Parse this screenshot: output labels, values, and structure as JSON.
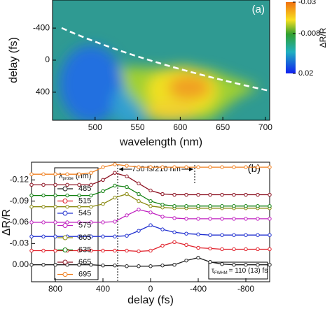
{
  "chart_data": [
    {
      "type": "heatmap",
      "panel_label": "(a)",
      "xlabel": "wavelength (nm)",
      "ylabel": "delay (fs)",
      "xlim": [
        450,
        705
      ],
      "xticks": [
        500,
        550,
        600,
        650,
        700
      ],
      "ylim": [
        -750,
        750
      ],
      "yticks": [
        -400,
        0,
        400
      ],
      "colorbar": {
        "label": "ΔR/R",
        "lim": [
          -0.03,
          0.02
        ],
        "ticks": [
          -0.03,
          -0.008,
          0.02
        ]
      }
    },
    {
      "type": "line",
      "panel_label": "(b)",
      "xlabel": "delay (fs)",
      "ylabel": "ΔR/R",
      "annotation": "730 fs/210 nm",
      "tau": {
        "symbol": "τ",
        "sub": "FWHM",
        "text": "= 110 (13) fs"
      },
      "legend_title": {
        "symbol": "λ",
        "sub": "probe",
        "unit": "(nm)"
      },
      "xlim": [
        1000,
        -1000
      ],
      "xticks": [
        800,
        400,
        0,
        -400,
        -800
      ],
      "ylim": [
        -0.145,
        0.024
      ],
      "yticks": [
        {
          "value": 0,
          "label": "0.00"
        },
        -0.03,
        -0.06,
        -0.09,
        -0.12
      ],
      "x": [
        1000,
        900,
        800,
        700,
        600,
        500,
        400,
        300,
        200,
        100,
        0,
        -100,
        -200,
        -300,
        -400,
        -500,
        -600,
        -700,
        -800,
        -900,
        -1000
      ],
      "series": [
        {
          "name": "485",
          "color": "#222222",
          "values": [
            0,
            0,
            0,
            0,
            0,
            0,
            0.001,
            0.001,
            0.002,
            0.002,
            0.002,
            0.001,
            0,
            -0.006,
            -0.01,
            -0.004,
            -0.001,
            0,
            0,
            0,
            0
          ]
        },
        {
          "name": "515",
          "color": "#e0202a",
          "values": [
            -0.02,
            -0.02,
            -0.02,
            -0.02,
            -0.02,
            -0.02,
            -0.02,
            -0.02,
            -0.02,
            -0.019,
            -0.02,
            -0.027,
            -0.032,
            -0.028,
            -0.024,
            -0.023,
            -0.022,
            -0.022,
            -0.022,
            -0.022,
            -0.022
          ]
        },
        {
          "name": "545",
          "color": "#2030d0",
          "values": [
            -0.04,
            -0.04,
            -0.04,
            -0.04,
            -0.04,
            -0.04,
            -0.04,
            -0.04,
            -0.041,
            -0.048,
            -0.056,
            -0.05,
            -0.046,
            -0.044,
            -0.043,
            -0.042,
            -0.042,
            -0.042,
            -0.042,
            -0.042,
            -0.042
          ]
        },
        {
          "name": "575",
          "color": "#c020c0",
          "values": [
            -0.06,
            -0.06,
            -0.06,
            -0.06,
            -0.06,
            -0.06,
            -0.06,
            -0.061,
            -0.07,
            -0.078,
            -0.074,
            -0.068,
            -0.066,
            -0.065,
            -0.065,
            -0.065,
            -0.065,
            -0.065,
            -0.065,
            -0.065,
            -0.065
          ]
        },
        {
          "name": "605",
          "color": "#8a8a10",
          "values": [
            -0.082,
            -0.082,
            -0.082,
            -0.082,
            -0.082,
            -0.082,
            -0.086,
            -0.095,
            -0.1,
            -0.09,
            -0.083,
            -0.081,
            -0.08,
            -0.08,
            -0.08,
            -0.08,
            -0.08,
            -0.08,
            -0.08,
            -0.08,
            -0.08
          ]
        },
        {
          "name": "635",
          "color": "#108010",
          "values": [
            -0.098,
            -0.098,
            -0.098,
            -0.098,
            -0.098,
            -0.098,
            -0.104,
            -0.112,
            -0.11,
            -0.1,
            -0.09,
            -0.085,
            -0.083,
            -0.083,
            -0.083,
            -0.083,
            -0.083,
            -0.083,
            -0.083,
            -0.083,
            -0.083
          ]
        },
        {
          "name": "665",
          "color": "#8b1020",
          "values": [
            -0.113,
            -0.113,
            -0.113,
            -0.113,
            -0.113,
            -0.113,
            -0.12,
            -0.13,
            -0.125,
            -0.115,
            -0.105,
            -0.1,
            -0.099,
            -0.099,
            -0.099,
            -0.099,
            -0.099,
            -0.099,
            -0.099,
            -0.099,
            -0.099
          ]
        },
        {
          "name": "695",
          "color": "#f08020",
          "values": [
            -0.128,
            -0.128,
            -0.128,
            -0.128,
            -0.128,
            -0.13,
            -0.138,
            -0.142,
            -0.14,
            -0.138,
            -0.138,
            -0.138,
            -0.138,
            -0.138,
            -0.138,
            -0.138,
            -0.138,
            -0.138,
            -0.138,
            -0.138,
            -0.138
          ]
        }
      ]
    }
  ]
}
